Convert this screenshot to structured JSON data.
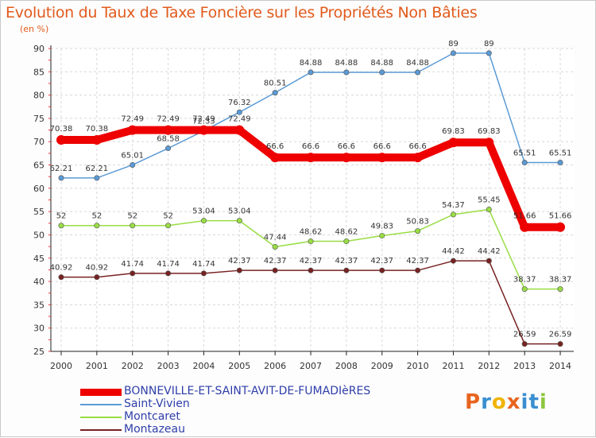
{
  "chart_data": {
    "type": "line",
    "title": "Evolution du Taux de Taxe Foncière sur les Propriétés Non Bâties",
    "unit": "(en %)",
    "categories": [
      "2000",
      "2001",
      "2002",
      "2003",
      "2004",
      "2005",
      "2006",
      "2007",
      "2008",
      "2009",
      "2010",
      "2011",
      "2012",
      "2013",
      "2014"
    ],
    "ylim": [
      25,
      90
    ],
    "yticks": [
      25,
      30,
      35,
      40,
      45,
      50,
      55,
      60,
      65,
      70,
      75,
      80,
      85,
      90
    ],
    "series": [
      {
        "name": "BONNEVILLE-ET-SAINT-AVIT-DE-FUMADIèRES",
        "color": "#ee0000",
        "values": [
          70.38,
          70.38,
          72.49,
          72.49,
          72.49,
          72.49,
          66.6,
          66.6,
          66.6,
          66.6,
          66.6,
          69.83,
          69.83,
          51.66,
          51.66
        ],
        "labels": [
          "70.38",
          "70.38",
          "72.49",
          "72.49",
          "72.49",
          "72.49",
          "66.6",
          "66.6",
          "66.6",
          "66.6",
          "66.6",
          "69.83",
          "69.83",
          "51.66",
          "51.66"
        ]
      },
      {
        "name": "Saint-Vivien",
        "color": "#5b9ad5",
        "values": [
          62.21,
          62.21,
          65.01,
          68.58,
          72.33,
          76.32,
          80.51,
          84.88,
          84.88,
          84.88,
          84.88,
          89,
          89,
          65.51,
          65.51
        ],
        "labels": [
          "62.21",
          "62.21",
          "65.01",
          "68.58",
          "72.33",
          "76.32",
          "80.51",
          "84.88",
          "84.88",
          "84.88",
          "84.88",
          "89",
          "89",
          "65.51",
          "65.51"
        ]
      },
      {
        "name": "Montcaret",
        "color": "#99dd44",
        "values": [
          52,
          52,
          52,
          52,
          53.04,
          53.04,
          47.44,
          48.62,
          48.62,
          49.83,
          50.83,
          54.37,
          55.45,
          38.37,
          38.37
        ],
        "labels": [
          "52",
          "52",
          "52",
          "52",
          "53.04",
          "53.04",
          "47.44",
          "48.62",
          "48.62",
          "49.83",
          "50.83",
          "54.37",
          "55.45",
          "38.37",
          "38.37"
        ]
      },
      {
        "name": "Montazeau",
        "color": "#772222",
        "values": [
          40.92,
          40.92,
          41.74,
          41.74,
          41.74,
          42.37,
          42.37,
          42.37,
          42.37,
          42.37,
          42.37,
          44.42,
          44.42,
          26.59,
          26.59
        ],
        "labels": [
          "40.92",
          "40.92",
          "41.74",
          "41.74",
          "41.74",
          "42.37",
          "42.37",
          "42.37",
          "42.37",
          "42.37",
          "42.37",
          "44.42",
          "44.42",
          "26.59",
          "26.59"
        ]
      }
    ]
  },
  "logo": {
    "text": "Proxiti",
    "letters": [
      "P",
      "r",
      "o",
      "x",
      "i",
      "t",
      "i"
    ]
  }
}
